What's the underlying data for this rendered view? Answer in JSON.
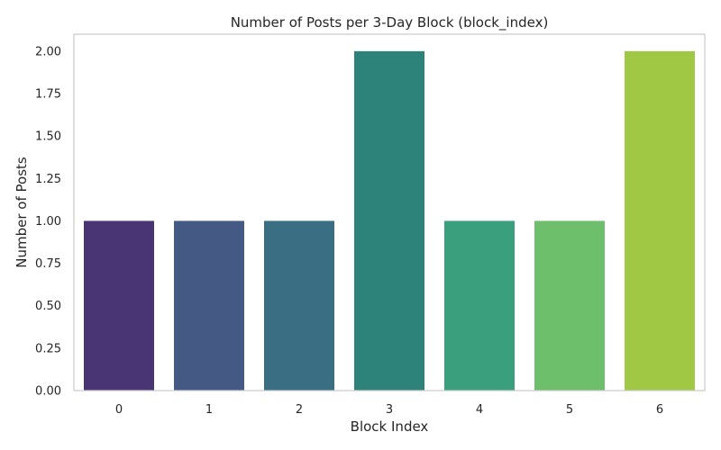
{
  "chart_data": {
    "type": "bar",
    "title": "Number of Posts per 3-Day Block (block_index)",
    "xlabel": "Block Index",
    "ylabel": "Number of Posts",
    "categories": [
      "0",
      "1",
      "2",
      "3",
      "4",
      "5",
      "6"
    ],
    "values": [
      1,
      1,
      1,
      2,
      1,
      1,
      2
    ],
    "ylim": [
      0,
      2.1
    ],
    "yticks": [
      "0.00",
      "0.25",
      "0.50",
      "0.75",
      "1.00",
      "1.25",
      "1.50",
      "1.75",
      "2.00"
    ],
    "colors": [
      "#4a3574",
      "#445a85",
      "#3a6e82",
      "#2d8279",
      "#3a9f7c",
      "#6dbf6c",
      "#a0c844"
    ],
    "grid": false,
    "legend": "none"
  }
}
